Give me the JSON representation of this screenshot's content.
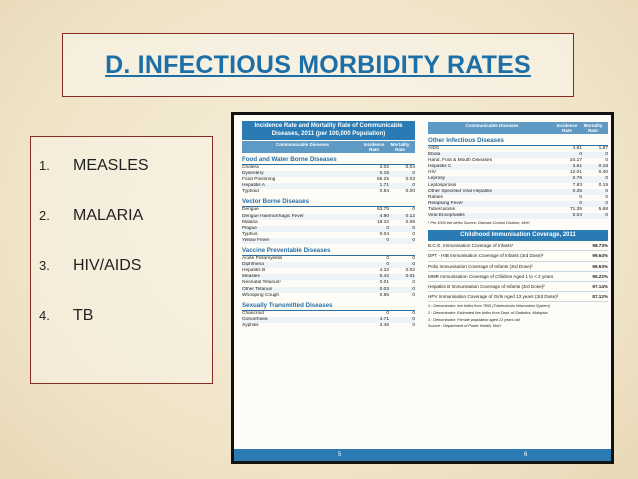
{
  "slide": {
    "title": "D. INFECTIOUS MORBIDITY RATES",
    "list": [
      {
        "num": "1.",
        "text": "MEASLES"
      },
      {
        "num": "2.",
        "text": "MALARIA"
      },
      {
        "num": "3.",
        "text": "HIV/AIDS"
      },
      {
        "num": "4.",
        "text": "TB"
      }
    ]
  },
  "doc": {
    "left_header": "Incidence Rate and Mortality Rate of Communicable Diseases, 2011 (per 100,000 Population)",
    "col_headers": {
      "disease": "Communicable Diseases",
      "incidence": "Incidence Rate",
      "mortality": "Mortality Rate"
    },
    "sections": [
      {
        "title": "Food and Water Borne Diseases",
        "rows": [
          {
            "name": "Cholera",
            "inc": "2.02",
            "mort": "0.04"
          },
          {
            "name": "Dysentery",
            "inc": "0.15",
            "mort": "0"
          },
          {
            "name": "Food Poisoning",
            "inc": "56.25",
            "mort": "0.03"
          },
          {
            "name": "Hepatitis A",
            "inc": "1.71",
            "mort": "0"
          },
          {
            "name": "Typhoid",
            "inc": "0.84",
            "mort": "0.00"
          }
        ]
      },
      {
        "title": "Vector Borne Diseases",
        "rows": [
          {
            "name": "Dengue",
            "inc": "63.75",
            "mort": "0"
          },
          {
            "name": "Dengue Haemorrhagic Fever",
            "inc": "4.90",
            "mort": "0.12"
          },
          {
            "name": "Malaria",
            "inc": "18.32",
            "mort": "0.06"
          },
          {
            "name": "Plague",
            "inc": "0",
            "mort": "0"
          },
          {
            "name": "Typhus",
            "inc": "0.04",
            "mort": "0"
          },
          {
            "name": "Yellow Fever",
            "inc": "0",
            "mort": "0"
          }
        ]
      },
      {
        "title": "Vaccine Preventable Diseases",
        "rows": [
          {
            "name": "Acute Poliomyelitis",
            "inc": "0",
            "mort": "0"
          },
          {
            "name": "Diphtheria",
            "inc": "0",
            "mort": "0"
          },
          {
            "name": "Hepatitis B",
            "inc": "4.32",
            "mort": "0.02"
          },
          {
            "name": "Measles",
            "inc": "5.42",
            "mort": "0.01"
          },
          {
            "name": "Neonatal Tetanus¹",
            "inc": "0.01",
            "mort": "0"
          },
          {
            "name": "Other Tetanus",
            "inc": "0.03",
            "mort": "0"
          },
          {
            "name": "Whooping Cough",
            "inc": "0.86",
            "mort": "0"
          }
        ]
      },
      {
        "title": "Sexually Transmitted Diseases",
        "rows": [
          {
            "name": "Chancroid",
            "inc": "0",
            "mort": "0"
          },
          {
            "name": "Gonorrhoea",
            "inc": "4.71",
            "mort": "0"
          },
          {
            "name": "Syphilis",
            "inc": "3.46",
            "mort": "0"
          }
        ]
      }
    ],
    "right_section": {
      "title": "Other Infectious Diseases",
      "rows": [
        {
          "name": "AIDS",
          "inc": "4.61",
          "mort": "1.97"
        },
        {
          "name": "Ebola",
          "inc": "0",
          "mort": "0"
        },
        {
          "name": "Hand, Foot & Mouth Diseases",
          "inc": "24.17",
          "mort": "0"
        },
        {
          "name": "Hepatitis C",
          "inc": "3.61",
          "mort": "0.18"
        },
        {
          "name": "HIV",
          "inc": "12.01",
          "mort": "0.40"
        },
        {
          "name": "Leprosy",
          "inc": "0.76",
          "mort": "0"
        },
        {
          "name": "Leptospirosis",
          "inc": "7.83",
          "mort": "0.19"
        },
        {
          "name": "Other Specified Viral Hepatitis",
          "inc": "0.25",
          "mort": "0"
        },
        {
          "name": "Rabies",
          "inc": "0",
          "mort": "0"
        },
        {
          "name": "Relapsing Fever",
          "inc": "0",
          "mort": "0"
        },
        {
          "name": "Tuberculosis",
          "inc": "71.35",
          "mort": "5.68"
        },
        {
          "name": "Viral Encephalitis",
          "inc": "0.04",
          "mort": "0"
        }
      ],
      "footnote": "¹ Per 1000 live births    Source: Disease Control Division, MoH"
    },
    "immunisation": {
      "title": "Childhood Immunisation Coverage, 2011",
      "rows": [
        {
          "name": "B.C.G. Immunisation Coverage of Infants¹",
          "value": "98.73%"
        },
        {
          "name": "DPT - HIB Immunisation Coverage of Infants (3rd Dose)²",
          "value": "99.64%"
        },
        {
          "name": "Polio Immunisation Coverage of Infants (3rd Dose)²",
          "value": "99.53%"
        },
        {
          "name": "MMR Immunisation Coverage of Children Aged 1 to < 2 years",
          "value": "95.22%"
        },
        {
          "name": "Hepatitis B Immunisation Coverage of Infants (3rd Dose)²",
          "value": "97.14%"
        },
        {
          "name": "HPV Immunisation Coverage of Girls Aged 13 years (3rd Dose)³",
          "value": "87.12%"
        }
      ],
      "footnotes": [
        "1 : Denominator: live births from TBIS (Tuberculosis Information System)",
        "2 : Denominator: Estimated live births from Dept. of Statistics, Malaysia",
        "3 : Denominator: Female population aged 13 years old.",
        "Source : Department of Public Health, MoH"
      ]
    },
    "page_left": "5",
    "page_right": "6"
  }
}
